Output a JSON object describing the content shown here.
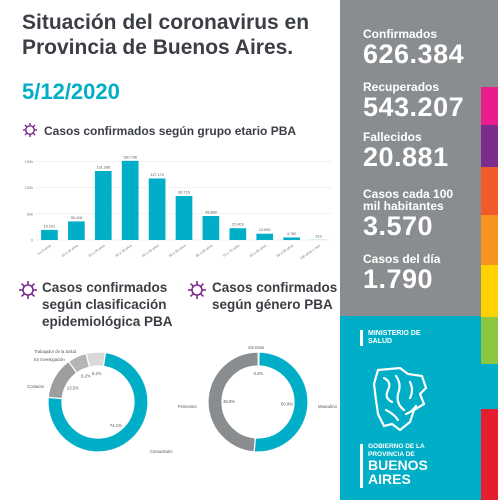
{
  "header": {
    "title_line1": "Situación del coronavirus en",
    "title_line2": "Provincia de Buenos Aires.",
    "date": "5/12/2020"
  },
  "sections": {
    "age": "Casos confirmados según grupo etario PBA",
    "epi_line1": "Casos confirmados",
    "epi_line2": "según clasificación",
    "epi_line3": "epidemiológica PBA",
    "gender_line1": "Casos confirmados",
    "gender_line2": "según género PBA"
  },
  "stats": [
    {
      "label": "Confirmados",
      "value": "626.384"
    },
    {
      "label": "Recuperados",
      "value": "543.207"
    },
    {
      "label": "Fallecidos",
      "value": "20.881"
    },
    {
      "label_line1": "Casos cada 100",
      "label_line2": "mil habitantes",
      "value": "3.570"
    },
    {
      "label": "Casos del día",
      "value": "1.790"
    }
  ],
  "logo": {
    "ministerio_line1": "MINISTERIO DE",
    "ministerio_line2": "SALUD",
    "gob_line1": "GOBIERNO DE LA",
    "gob_line2": "PROVINCIA DE",
    "gob_line3": "BUENOS",
    "gob_line4": "AIRES"
  },
  "colors": {
    "teal": "#00aec7",
    "gray_panel": "#8a8d8f",
    "dark_text": "#3b3f45",
    "virus_purple": "#7b2d8e",
    "stripes": [
      "#8a8d8f",
      "#e91e8c",
      "#7b2d8e",
      "#f15a29",
      "#f7941d",
      "#ffd200",
      "#8dc63f",
      "#00aec7",
      "#e41e2d"
    ]
  },
  "chart_data": [
    {
      "type": "bar",
      "title": "Casos confirmados según grupo etario PBA",
      "categories": [
        "0 a 9 años",
        "10 a 19 años",
        "20 a 29 años",
        "30 a 39 años",
        "40 a 49 años",
        "50 a 59 años",
        "60 a 69 años",
        "70 a 79 años",
        "80 a 89 años",
        "90 a 99 años",
        "100 años y más"
      ],
      "values": [
        19291,
        35416,
        131398,
        150796,
        117170,
        83716,
        45684,
        22403,
        12000,
        4780,
        313
      ],
      "value_labels": [
        "19.291",
        "35.416",
        "131.398",
        "150.796",
        "117.170",
        "83.716",
        "45.684",
        "22.403",
        "12.000",
        "4.780",
        "313"
      ],
      "yticks": [
        "0",
        "50k",
        "100k",
        "150k"
      ],
      "ylim": [
        0,
        160000
      ],
      "grid": true,
      "color": "#00aec7"
    },
    {
      "type": "pie",
      "title": "Casos confirmados según clasificación epidemiológica PBA",
      "donut": true,
      "slices": [
        {
          "name": "Comunitario",
          "value": 74.1,
          "label": "74.1%",
          "color": "#00aec7"
        },
        {
          "name": "Contacto",
          "value": 13.5,
          "label": "13.5%",
          "color": "#9e9e9e"
        },
        {
          "name": "En Investigación",
          "value": 6.2,
          "label": "6.2%",
          "color": "#b5b5b5"
        },
        {
          "name": "Trabajador de la Salud",
          "value": 6.2,
          "label": "6.2%",
          "color": "#d9d9d9"
        }
      ]
    },
    {
      "type": "pie",
      "title": "Casos confirmados según género PBA",
      "donut": true,
      "slices": [
        {
          "name": "Masculino",
          "value": 50.9,
          "label": "50.9%",
          "color": "#00aec7"
        },
        {
          "name": "Femenino",
          "value": 48.9,
          "label": "48.9%",
          "color": "#8a8d8f"
        },
        {
          "name": "Sin Dato",
          "value": 0.2,
          "label": "0.2%",
          "color": "#cfcfcf"
        }
      ]
    }
  ]
}
